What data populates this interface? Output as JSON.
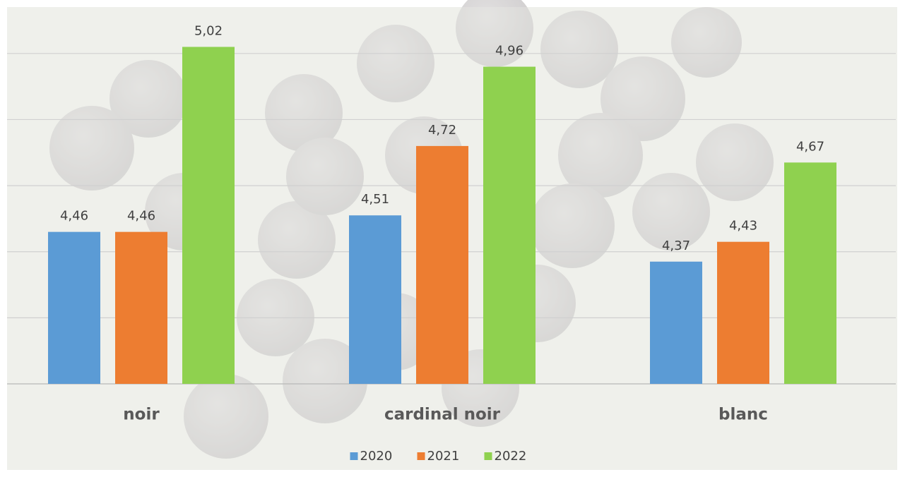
{
  "chart_data": {
    "type": "bar",
    "categories": [
      "noir",
      "cardinal noir",
      "blanc"
    ],
    "series": [
      {
        "name": "2020",
        "color": "#5b9bd5",
        "values": [
          4.46,
          4.51,
          4.37
        ],
        "value_labels": [
          "4,46",
          "4,51",
          "4,37"
        ]
      },
      {
        "name": "2021",
        "color": "#ed7d31",
        "values": [
          4.46,
          4.72,
          4.43
        ],
        "value_labels": [
          "4,46",
          "4,72",
          "4,43"
        ]
      },
      {
        "name": "2022",
        "color": "#8fd14f",
        "values": [
          5.02,
          4.96,
          4.67
        ],
        "value_labels": [
          "5,02",
          "4,96",
          "4,67"
        ]
      }
    ],
    "ylim": [
      4.0,
      5.1
    ],
    "yticks": [
      4.0,
      4.2,
      4.4,
      4.6,
      4.8,
      5.0
    ],
    "grid": true,
    "legend": "bottom"
  }
}
